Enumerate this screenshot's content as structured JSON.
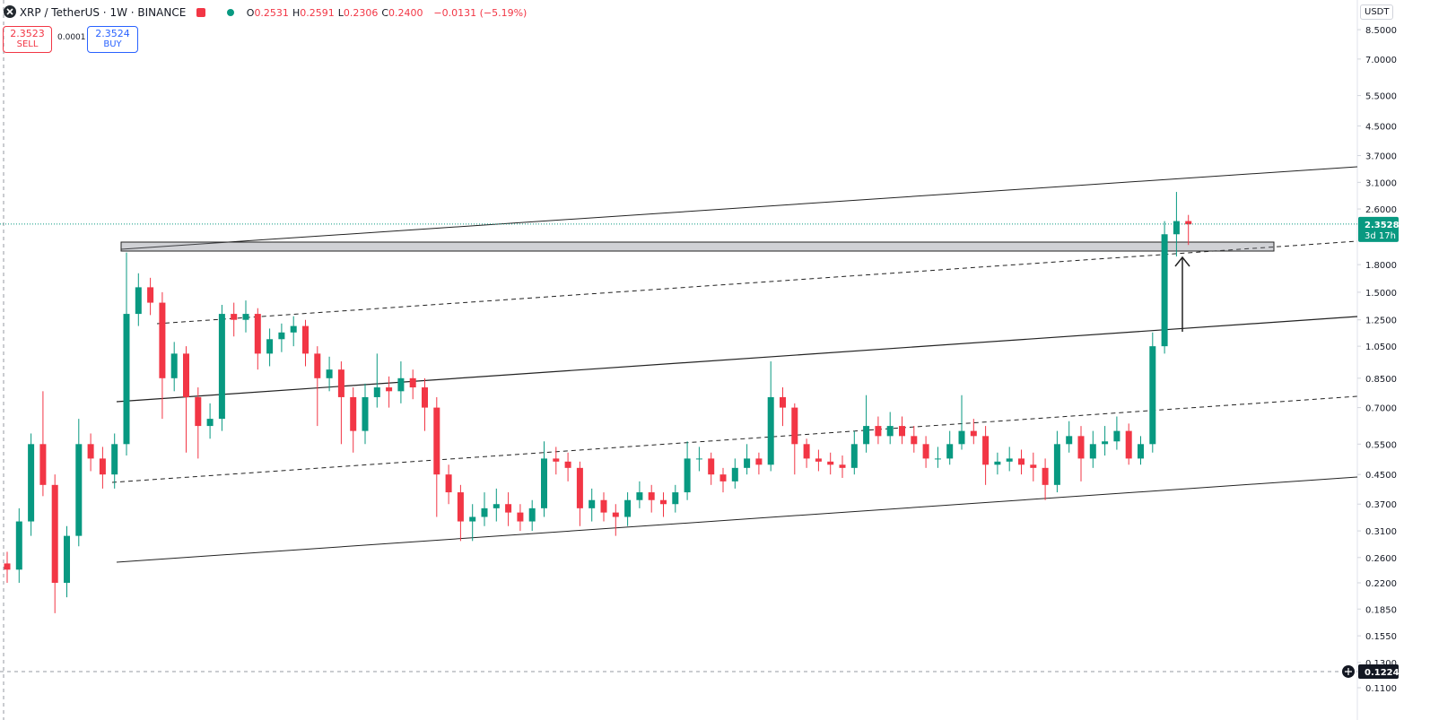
{
  "toolbar": {
    "symbol": "XRP / TetherUS · 1W · BINANCE",
    "ohlc": [
      {
        "label": "O",
        "value": "0.2531"
      },
      {
        "label": "H",
        "value": "0.2591"
      },
      {
        "label": "L",
        "value": "0.2306"
      },
      {
        "label": "C",
        "value": "0.2400"
      }
    ],
    "change": "−0.0131 (−5.19%)",
    "sell_price": "2.3523",
    "sell_label": "SELL",
    "spread": "0.0001",
    "buy_price": "2.3524",
    "buy_label": "BUY",
    "currency": "USDT"
  },
  "chart_data": {
    "type": "candlestick",
    "log_scale": true,
    "up_color": "#089981",
    "down_color": "#f23645",
    "ylim": [
      0.096,
      10.34
    ],
    "yticks": [
      {
        "value": 8.5,
        "label": "8.5000"
      },
      {
        "value": 7,
        "label": "7.0000"
      },
      {
        "value": 5.5,
        "label": "5.5000"
      },
      {
        "value": 4.5,
        "label": "4.5000"
      },
      {
        "value": 3.7,
        "label": "3.7000"
      },
      {
        "value": 3.1,
        "label": "3.1000"
      },
      {
        "value": 2.6,
        "label": "2.6000"
      },
      {
        "value": 1.8,
        "label": "1.8000"
      },
      {
        "value": 1.5,
        "label": "1.5000"
      },
      {
        "value": 1.25,
        "label": "1.2500"
      },
      {
        "value": 1.05,
        "label": "1.0500"
      },
      {
        "value": 0.85,
        "label": "0.8500"
      },
      {
        "value": 0.7,
        "label": "0.7000"
      },
      {
        "value": 0.55,
        "label": "0.5500"
      },
      {
        "value": 0.45,
        "label": "0.4500"
      },
      {
        "value": 0.37,
        "label": "0.3700"
      },
      {
        "value": 0.31,
        "label": "0.3100"
      },
      {
        "value": 0.26,
        "label": "0.2600"
      },
      {
        "value": 0.22,
        "label": "0.2200"
      },
      {
        "value": 0.185,
        "label": "0.1850"
      },
      {
        "value": 0.155,
        "label": "0.1550"
      },
      {
        "value": 0.13,
        "label": "0.1300"
      },
      {
        "value": 0.11,
        "label": "0.1100"
      }
    ],
    "last_price": 2.3528,
    "countdown": "3d 17h",
    "crosshair_price": 0.1224,
    "open": [
      0.25,
      0.24,
      0.33,
      0.55,
      0.42,
      0.22,
      0.3,
      0.55,
      0.5,
      0.45,
      0.55,
      1.3,
      1.55,
      1.4,
      0.85,
      1.0,
      0.75,
      0.62,
      0.65,
      1.3,
      1.25,
      1.3,
      1.0,
      1.1,
      1.15,
      1.2,
      1.0,
      0.85,
      0.9,
      0.75,
      0.6,
      0.75,
      0.8,
      0.78,
      0.85,
      0.8,
      0.7,
      0.45,
      0.4,
      0.33,
      0.34,
      0.36,
      0.37,
      0.35,
      0.33,
      0.36,
      0.5,
      0.49,
      0.47,
      0.36,
      0.38,
      0.35,
      0.34,
      0.38,
      0.4,
      0.38,
      0.37,
      0.4,
      0.5,
      0.5,
      0.45,
      0.43,
      0.47,
      0.5,
      0.48,
      0.75,
      0.7,
      0.55,
      0.5,
      0.49,
      0.48,
      0.47,
      0.55,
      0.62,
      0.58,
      0.62,
      0.58,
      0.55,
      0.5,
      0.5,
      0.55,
      0.6,
      0.58,
      0.48,
      0.49,
      0.5,
      0.48,
      0.47,
      0.42,
      0.55,
      0.58,
      0.5,
      0.55,
      0.56,
      0.6,
      0.5,
      0.55,
      1.05,
      2.2,
      2.4
    ],
    "high": [
      0.27,
      0.36,
      0.59,
      0.78,
      0.45,
      0.32,
      0.65,
      0.59,
      0.54,
      0.59,
      1.95,
      1.7,
      1.65,
      1.5,
      1.08,
      1.05,
      0.8,
      0.72,
      1.38,
      1.4,
      1.42,
      1.35,
      1.18,
      1.22,
      1.28,
      1.25,
      1.05,
      0.98,
      0.95,
      0.8,
      0.82,
      1.0,
      0.86,
      0.95,
      0.9,
      0.85,
      0.75,
      0.48,
      0.42,
      0.37,
      0.4,
      0.41,
      0.4,
      0.37,
      0.38,
      0.56,
      0.54,
      0.52,
      0.49,
      0.41,
      0.4,
      0.37,
      0.4,
      0.43,
      0.42,
      0.4,
      0.42,
      0.56,
      0.54,
      0.52,
      0.47,
      0.5,
      0.55,
      0.52,
      0.95,
      0.8,
      0.72,
      0.57,
      0.53,
      0.52,
      0.51,
      0.6,
      0.76,
      0.66,
      0.68,
      0.66,
      0.62,
      0.58,
      0.54,
      0.6,
      0.76,
      0.65,
      0.62,
      0.52,
      0.54,
      0.53,
      0.52,
      0.5,
      0.6,
      0.64,
      0.62,
      0.6,
      0.62,
      0.66,
      0.63,
      0.58,
      1.15,
      2.4,
      2.91,
      2.5
    ],
    "low": [
      0.22,
      0.22,
      0.3,
      0.39,
      0.18,
      0.2,
      0.28,
      0.46,
      0.41,
      0.41,
      0.51,
      1.2,
      1.29,
      0.65,
      0.78,
      0.52,
      0.5,
      0.57,
      0.6,
      1.12,
      1.15,
      0.9,
      0.92,
      1.01,
      1.05,
      0.92,
      0.62,
      0.78,
      0.55,
      0.52,
      0.55,
      0.7,
      0.7,
      0.72,
      0.74,
      0.6,
      0.34,
      0.37,
      0.29,
      0.29,
      0.32,
      0.33,
      0.32,
      0.31,
      0.31,
      0.34,
      0.45,
      0.43,
      0.32,
      0.33,
      0.33,
      0.3,
      0.32,
      0.36,
      0.35,
      0.34,
      0.35,
      0.38,
      0.46,
      0.42,
      0.4,
      0.41,
      0.45,
      0.45,
      0.46,
      0.62,
      0.45,
      0.47,
      0.46,
      0.45,
      0.44,
      0.45,
      0.52,
      0.55,
      0.55,
      0.55,
      0.52,
      0.47,
      0.47,
      0.48,
      0.53,
      0.55,
      0.42,
      0.45,
      0.46,
      0.45,
      0.43,
      0.38,
      0.4,
      0.52,
      0.43,
      0.47,
      0.51,
      0.53,
      0.48,
      0.48,
      0.52,
      1.0,
      1.9,
      2.05
    ],
    "close": [
      0.24,
      0.33,
      0.55,
      0.42,
      0.22,
      0.3,
      0.55,
      0.5,
      0.45,
      0.55,
      1.3,
      1.55,
      1.4,
      0.85,
      1.0,
      0.75,
      0.62,
      0.65,
      1.3,
      1.25,
      1.3,
      1.0,
      1.1,
      1.15,
      1.2,
      1.0,
      0.85,
      0.9,
      0.75,
      0.6,
      0.75,
      0.8,
      0.78,
      0.85,
      0.8,
      0.7,
      0.45,
      0.4,
      0.33,
      0.34,
      0.36,
      0.37,
      0.35,
      0.33,
      0.36,
      0.5,
      0.49,
      0.47,
      0.36,
      0.38,
      0.35,
      0.34,
      0.38,
      0.4,
      0.38,
      0.37,
      0.4,
      0.5,
      0.5,
      0.45,
      0.43,
      0.47,
      0.5,
      0.48,
      0.75,
      0.7,
      0.55,
      0.5,
      0.49,
      0.48,
      0.47,
      0.55,
      0.62,
      0.58,
      0.62,
      0.58,
      0.55,
      0.5,
      0.5,
      0.55,
      0.6,
      0.58,
      0.48,
      0.49,
      0.5,
      0.48,
      0.47,
      0.42,
      0.55,
      0.58,
      0.5,
      0.55,
      0.56,
      0.6,
      0.5,
      0.55,
      1.05,
      2.2,
      2.4,
      2.35
    ]
  }
}
